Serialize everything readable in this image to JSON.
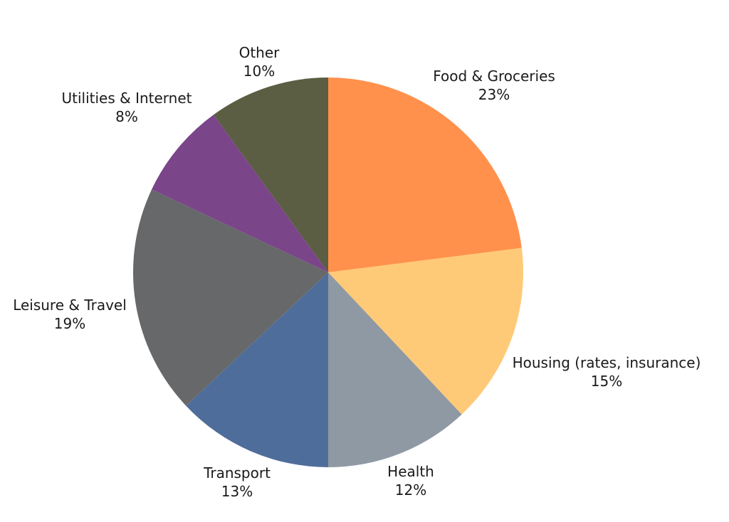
{
  "chart_data": {
    "type": "pie",
    "title": "",
    "slices": [
      {
        "label": "Food & Groceries",
        "value": 23,
        "value_label": "23%",
        "color": "#FF914D"
      },
      {
        "label": "Housing (rates, insurance)",
        "value": 15,
        "value_label": "15%",
        "color": "#FFCA78"
      },
      {
        "label": "Health",
        "value": 12,
        "value_label": "12%",
        "color": "#8F99A3"
      },
      {
        "label": "Transport",
        "value": 13,
        "value_label": "13%",
        "color": "#4F6D9A"
      },
      {
        "label": "Leisure & Travel",
        "value": 19,
        "value_label": "19%",
        "color": "#67686A"
      },
      {
        "label": "Utilities & Internet",
        "value": 8,
        "value_label": "8%",
        "color": "#7A4589"
      },
      {
        "label": "Other",
        "value": 10,
        "value_label": "10%",
        "color": "#5B5E42"
      }
    ],
    "start_angle": "12 o'clock",
    "direction": "clockwise",
    "legend": "none"
  }
}
